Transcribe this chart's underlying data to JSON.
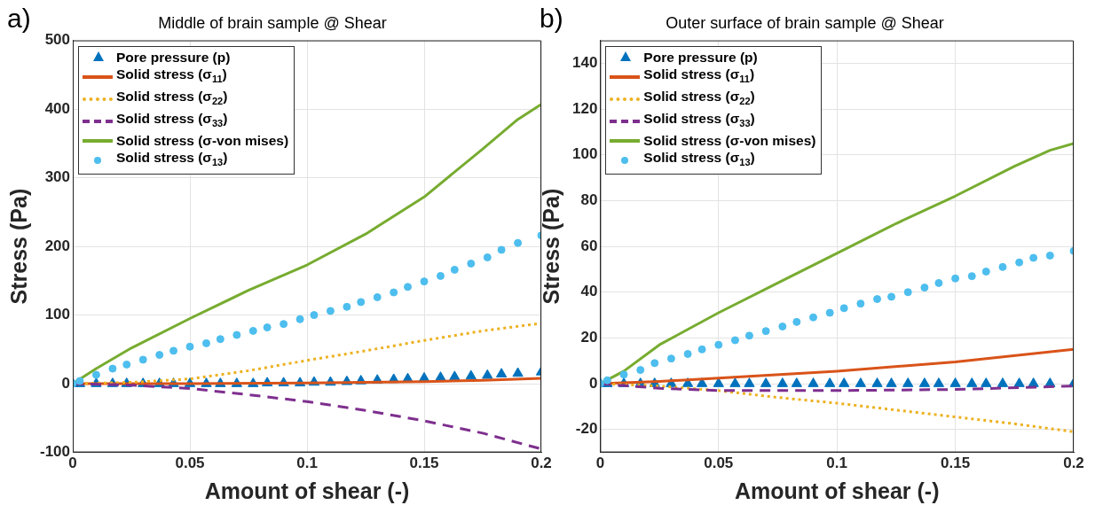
{
  "chart_data": [
    {
      "type": "line",
      "title": "Middle of brain sample @ Shear",
      "xlabel": "Amount of shear (-)",
      "ylabel": "Stress (Pa)",
      "annotations": [
        "a)"
      ],
      "xlim": [
        0,
        0.2
      ],
      "xticks": [
        0,
        0.05,
        0.1,
        0.15,
        0.2
      ],
      "ylim": [
        -100,
        500
      ],
      "yticks": [
        -100,
        0,
        100,
        200,
        300,
        400,
        500
      ],
      "grid": true,
      "legend": "top left",
      "series": [
        {
          "name": "Pore pressure (p)",
          "type": "scatter",
          "marker": "triangle",
          "color": "#0072bd",
          "x": [
            0,
            0.003,
            0.01,
            0.017,
            0.023,
            0.03,
            0.037,
            0.043,
            0.05,
            0.057,
            0.063,
            0.07,
            0.077,
            0.083,
            0.09,
            0.097,
            0.103,
            0.11,
            0.117,
            0.123,
            0.13,
            0.137,
            0.143,
            0.15,
            0.157,
            0.163,
            0.17,
            0.177,
            0.183,
            0.19,
            0.2
          ],
          "values": [
            0,
            0,
            0,
            0,
            0,
            0,
            0,
            0,
            0,
            0,
            0,
            0,
            0,
            1,
            1,
            1,
            2,
            2,
            3,
            4,
            5,
            6,
            7,
            8,
            9,
            10,
            11,
            12,
            14,
            15,
            17
          ]
        },
        {
          "name": "Solid stress (σ$_{11}$)",
          "marker": "none",
          "line_style": "solid",
          "color": "#d95319",
          "x": [
            0,
            0.05,
            0.1,
            0.125,
            0.15,
            0.175,
            0.2
          ],
          "values": [
            0,
            0,
            1,
            2,
            3,
            5,
            8
          ]
        },
        {
          "name": "Solid stress (σ$_{22}$)",
          "type": "line",
          "marker": "none",
          "line_style": "dotted",
          "color": "#edb120",
          "x": [
            0,
            0.025,
            0.05,
            0.075,
            0.1,
            0.125,
            0.15,
            0.175,
            0.2
          ],
          "values": [
            0,
            2,
            7,
            19,
            34,
            48,
            63,
            77,
            88
          ]
        },
        {
          "name": "Solid stress (σ$_{33}$)",
          "type": "line",
          "marker": "none",
          "line_style": "dashed",
          "color": "#7e2f8e",
          "x": [
            0,
            0.025,
            0.05,
            0.075,
            0.1,
            0.125,
            0.15,
            0.175,
            0.2
          ],
          "values": [
            0,
            -2,
            -7,
            -16,
            -26,
            -39,
            -54,
            -72,
            -95
          ]
        },
        {
          "name": "Solid stress (σ-von mises)",
          "type": "line",
          "marker": "none",
          "line_style": "solid",
          "color": "#77ac30",
          "x": [
            0,
            0.01,
            0.025,
            0.05,
            0.075,
            0.1,
            0.125,
            0.15,
            0.175,
            0.19,
            0.2
          ],
          "values": [
            0,
            22,
            52,
            95,
            136,
            173,
            218,
            272,
            342,
            385,
            407
          ]
        },
        {
          "name": "Solid stress (σ$_{13}$)",
          "type": "scatter",
          "marker": "circle",
          "color": "#4dbeee",
          "x": [
            0,
            0.003,
            0.01,
            0.017,
            0.023,
            0.03,
            0.037,
            0.043,
            0.05,
            0.057,
            0.063,
            0.07,
            0.077,
            0.083,
            0.09,
            0.097,
            0.103,
            0.11,
            0.117,
            0.123,
            0.13,
            0.137,
            0.143,
            0.15,
            0.157,
            0.163,
            0.17,
            0.177,
            0.183,
            0.19,
            0.2
          ],
          "values": [
            0,
            4,
            13,
            22,
            28,
            35,
            42,
            48,
            54,
            59,
            65,
            71,
            77,
            82,
            87,
            94,
            100,
            106,
            112,
            119,
            126,
            133,
            141,
            149,
            157,
            166,
            175,
            184,
            195,
            205,
            216
          ]
        }
      ]
    },
    {
      "type": "line",
      "title": "Outer surface of brain sample @ Shear",
      "xlabel": "Amount of shear (-)",
      "ylabel": "Stress (Pa)",
      "annotations": [
        "b)"
      ],
      "xlim": [
        0,
        0.2
      ],
      "xticks": [
        0,
        0.05,
        0.1,
        0.15,
        0.2
      ],
      "ylim": [
        -30,
        150
      ],
      "yticks": [
        -20,
        0,
        20,
        40,
        60,
        80,
        100,
        120,
        140
      ],
      "grid": true,
      "legend": "top left",
      "series": [
        {
          "name": "Pore pressure (p)",
          "type": "scatter",
          "marker": "triangle",
          "color": "#0072bd",
          "x": [
            0,
            0.003,
            0.01,
            0.017,
            0.023,
            0.03,
            0.037,
            0.043,
            0.05,
            0.057,
            0.063,
            0.07,
            0.077,
            0.083,
            0.09,
            0.097,
            0.103,
            0.11,
            0.117,
            0.123,
            0.13,
            0.137,
            0.143,
            0.15,
            0.157,
            0.163,
            0.17,
            0.177,
            0.183,
            0.19,
            0.2
          ],
          "values": [
            0,
            0,
            0,
            0,
            0,
            0,
            0,
            0,
            0,
            0,
            0,
            0,
            0,
            0,
            0,
            0,
            0,
            0,
            0,
            0,
            0,
            0,
            0,
            0,
            0,
            0,
            0,
            0,
            0,
            0,
            0
          ]
        },
        {
          "name": "Solid stress (σ$_{11}$)",
          "marker": "none",
          "line_style": "solid",
          "color": "#d95319",
          "x": [
            0,
            0.025,
            0.05,
            0.1,
            0.15,
            0.2
          ],
          "values": [
            0,
            1,
            2.5,
            5.5,
            9.5,
            15
          ]
        },
        {
          "name": "Solid stress (σ$_{22}$)",
          "type": "line",
          "marker": "none",
          "line_style": "dotted",
          "color": "#edb120",
          "x": [
            0,
            0.025,
            0.05,
            0.075,
            0.1,
            0.125,
            0.15,
            0.175,
            0.2
          ],
          "values": [
            0,
            -1,
            -3,
            -6,
            -8.5,
            -11.5,
            -14.5,
            -17.5,
            -21
          ]
        },
        {
          "name": "Solid stress (σ$_{33}$)",
          "type": "line",
          "marker": "none",
          "line_style": "dashed",
          "color": "#7e2f8e",
          "x": [
            0,
            0.025,
            0.05,
            0.1,
            0.15,
            0.2
          ],
          "values": [
            0,
            -2,
            -3,
            -3,
            -2.5,
            -1
          ]
        },
        {
          "name": "Solid stress (σ-von mises)",
          "type": "line",
          "marker": "none",
          "line_style": "solid",
          "color": "#77ac30",
          "x": [
            0,
            0.01,
            0.025,
            0.05,
            0.075,
            0.1,
            0.125,
            0.15,
            0.175,
            0.19,
            0.2
          ],
          "values": [
            0,
            5.5,
            17,
            31,
            44,
            57,
            70,
            82,
            95,
            102,
            105
          ]
        },
        {
          "name": "Solid stress (σ$_{13}$)",
          "type": "scatter",
          "marker": "circle",
          "color": "#4dbeee",
          "x": [
            0,
            0.003,
            0.01,
            0.017,
            0.023,
            0.03,
            0.037,
            0.043,
            0.05,
            0.057,
            0.063,
            0.07,
            0.077,
            0.083,
            0.09,
            0.097,
            0.103,
            0.11,
            0.117,
            0.123,
            0.13,
            0.137,
            0.143,
            0.15,
            0.157,
            0.163,
            0.17,
            0.177,
            0.183,
            0.19,
            0.2
          ],
          "values": [
            0,
            1.5,
            4,
            6,
            9,
            11,
            13,
            15,
            17,
            19,
            21,
            23,
            25,
            27,
            29,
            31,
            33,
            35,
            37,
            38,
            40,
            42,
            44,
            46,
            47,
            49,
            51,
            53,
            55,
            56,
            58
          ]
        }
      ]
    }
  ]
}
